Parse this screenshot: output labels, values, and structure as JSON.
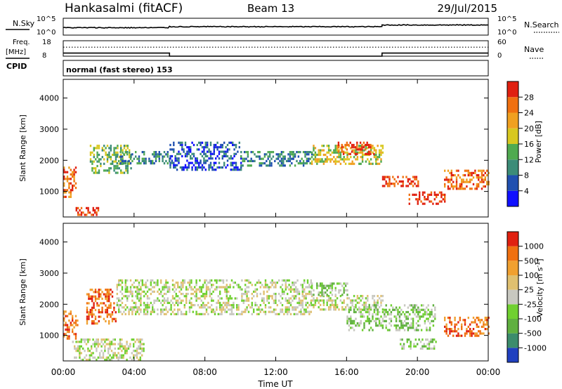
{
  "header": {
    "station": "Hankasalmi (fitACF)",
    "beam": "Beam 13",
    "date": "29/Jul/2015"
  },
  "left_labels": {
    "nsky": "N.Sky",
    "freq_line1": "Freq.",
    "freq_line2": "[MHz]",
    "cpid": "CPID"
  },
  "right_labels": {
    "nsearch": "N.Search",
    "nave": "Nave"
  },
  "cpid_text": "normal (fast stereo) 153",
  "noise_panel": {
    "left_ticks": [
      "10^5",
      "10^0"
    ],
    "right_ticks": [
      "10^5",
      "10^0"
    ]
  },
  "freq_panel": {
    "left_ticks": [
      "18",
      "8"
    ],
    "right_ticks": [
      "60",
      "0"
    ]
  },
  "x_axis": {
    "label": "Time UT",
    "ticks": [
      "00:00",
      "04:00",
      "08:00",
      "12:00",
      "16:00",
      "20:00",
      "00:00"
    ]
  },
  "power_colorbar": {
    "title": "Power [dB]",
    "ticks": [
      "4",
      "8",
      "12",
      "16",
      "20",
      "24",
      "28"
    ],
    "colors": [
      "#1010ff",
      "#2050b0",
      "#3c8c78",
      "#50aa50",
      "#d8c820",
      "#f0a020",
      "#f07010",
      "#e02010"
    ]
  },
  "velocity_colorbar": {
    "title_main": "Velocity [m s",
    "title_sup": "-1",
    "title_end": "]",
    "ticks": [
      "1000",
      "500",
      "100",
      "25",
      "-25",
      "-100",
      "-500",
      "-1000"
    ],
    "colors": [
      "#2040c0",
      "#3c8c6c",
      "#60b040",
      "#70d030",
      "#c8c8c0",
      "#e0c070",
      "#f0a030",
      "#f07010",
      "#e02010"
    ]
  },
  "chart_data": [
    {
      "type": "heatmap",
      "title": "Power",
      "ylabel": "Slant Range [km]",
      "xlabel": "Time UT",
      "x_range_hours": [
        0,
        24
      ],
      "ylim": [
        180,
        4600
      ],
      "y_ticks": [
        1000,
        2000,
        3000,
        4000
      ],
      "patches": [
        {
          "t0": 0.0,
          "t1": 0.7,
          "r0": 800,
          "r1": 1800,
          "level": 6
        },
        {
          "t0": 0.7,
          "t1": 2.0,
          "r0": 250,
          "r1": 500,
          "level": 7
        },
        {
          "t0": 1.5,
          "t1": 3.8,
          "r0": 1600,
          "r1": 2500,
          "level": 3
        },
        {
          "t0": 3.0,
          "t1": 6.0,
          "r0": 1900,
          "r1": 2300,
          "level": 2
        },
        {
          "t0": 6.0,
          "t1": 10.0,
          "r0": 1700,
          "r1": 2600,
          "level": 1
        },
        {
          "t0": 10.0,
          "t1": 14.0,
          "r0": 1800,
          "r1": 2300,
          "level": 2
        },
        {
          "t0": 14.0,
          "t1": 18.0,
          "r0": 1900,
          "r1": 2500,
          "level": 4
        },
        {
          "t0": 15.5,
          "t1": 17.5,
          "r0": 2200,
          "r1": 2600,
          "level": 7
        },
        {
          "t0": 18.0,
          "t1": 20.0,
          "r0": 1200,
          "r1": 1500,
          "level": 7
        },
        {
          "t0": 19.5,
          "t1": 21.5,
          "r0": 600,
          "r1": 1000,
          "level": 7
        },
        {
          "t0": 21.5,
          "t1": 24.0,
          "r0": 1100,
          "r1": 1700,
          "level": 6
        }
      ]
    },
    {
      "type": "heatmap",
      "title": "Velocity",
      "ylabel": "Slant Range [km]",
      "xlabel": "Time UT",
      "x_range_hours": [
        0,
        24
      ],
      "ylim": [
        180,
        4600
      ],
      "y_ticks": [
        1000,
        2000,
        3000,
        4000
      ],
      "patches": [
        {
          "t0": 0.0,
          "t1": 0.8,
          "r0": 900,
          "r1": 1800,
          "level": 7
        },
        {
          "t0": 1.3,
          "t1": 3.0,
          "r0": 1400,
          "r1": 2500,
          "level": 7
        },
        {
          "t0": 0.5,
          "t1": 4.5,
          "r0": 250,
          "r1": 900,
          "level": 4
        },
        {
          "t0": 3.0,
          "t1": 14.0,
          "r0": 1700,
          "r1": 2800,
          "level": 4
        },
        {
          "t0": 14.0,
          "t1": 18.0,
          "r0": 1800,
          "r1": 2300,
          "level": 4
        },
        {
          "t0": 14.0,
          "t1": 16.0,
          "r0": 2300,
          "r1": 2700,
          "level": 3
        },
        {
          "t0": 16.0,
          "t1": 21.0,
          "r0": 1200,
          "r1": 2000,
          "level": 3
        },
        {
          "t0": 19.0,
          "t1": 21.0,
          "r0": 600,
          "r1": 900,
          "level": 3
        },
        {
          "t0": 21.5,
          "t1": 24.0,
          "r0": 1000,
          "r1": 1600,
          "level": 7
        }
      ]
    },
    {
      "type": "line",
      "title": "Freq / Nave",
      "freq_MHz_steps": [
        {
          "t0": 0.0,
          "t1": 6.0,
          "value": 10.0
        },
        {
          "t0": 6.0,
          "t1": 18.0,
          "value": 8.0
        },
        {
          "t0": 18.0,
          "t1": 24.0,
          "value": 10.0
        }
      ],
      "freq_ylim": [
        8,
        18
      ],
      "nave_level": 35,
      "nave_ylim": [
        0,
        60
      ]
    },
    {
      "type": "line",
      "title": "N.Sky / N.Search",
      "log_value_steps": [
        {
          "t0": 0.0,
          "t1": 6.0,
          "value": 2.2
        },
        {
          "t0": 6.0,
          "t1": 18.0,
          "value": 2.5
        },
        {
          "t0": 18.0,
          "t1": 24.0,
          "value": 3.0
        }
      ],
      "ylim_log": [
        0,
        5
      ]
    }
  ]
}
